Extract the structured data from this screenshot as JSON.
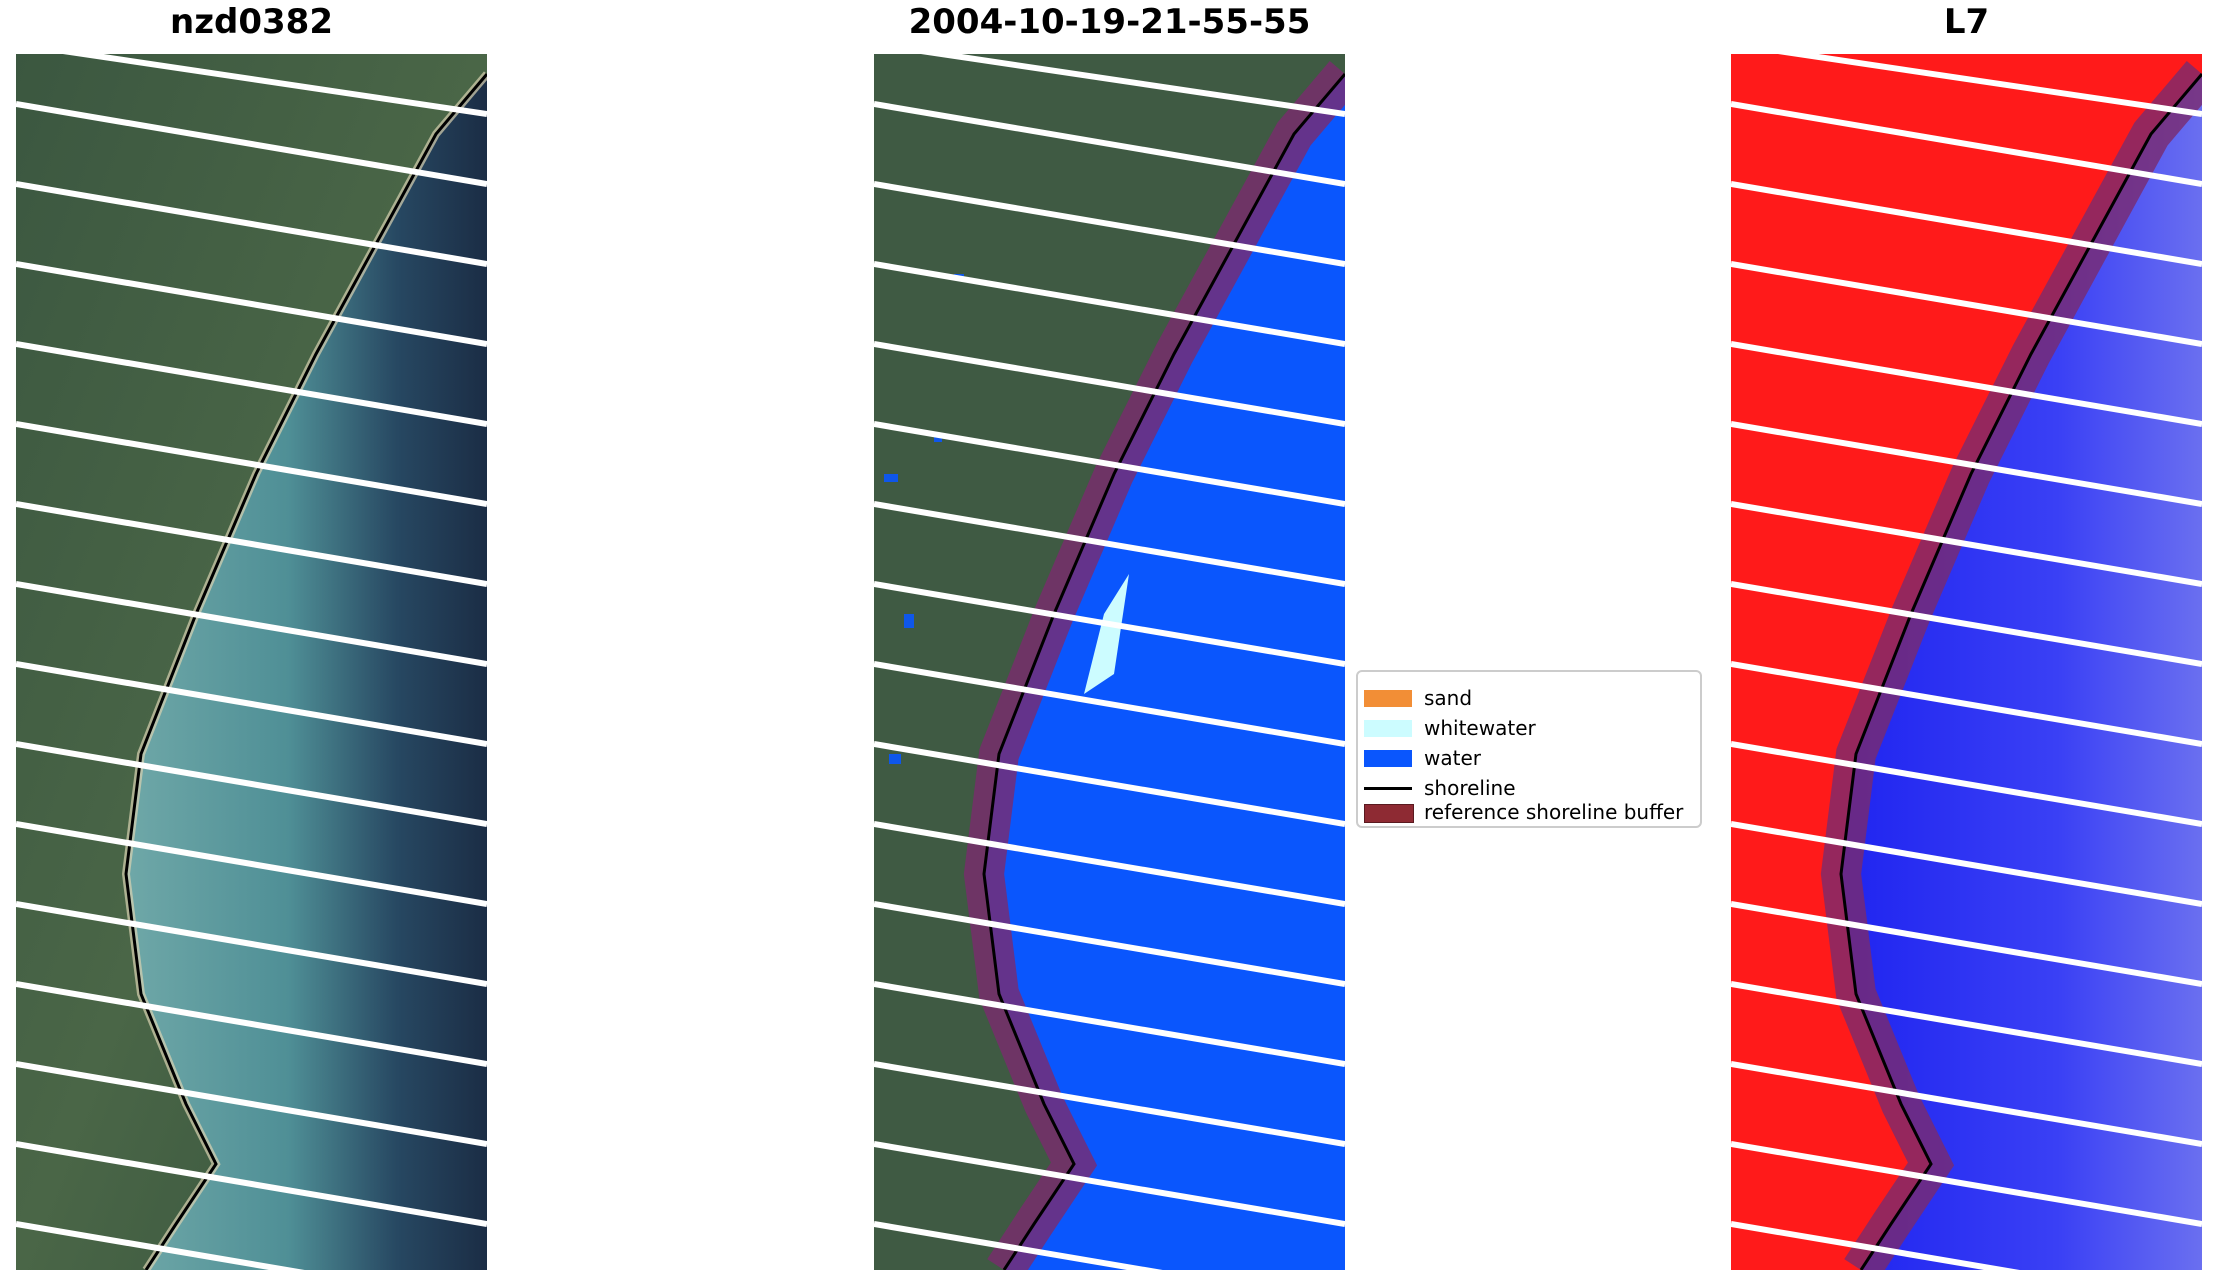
{
  "panels": [
    {
      "title": "nzd0382"
    },
    {
      "title": "2004-10-19-21-55-55"
    },
    {
      "title": "L7"
    }
  ],
  "legend": {
    "items": [
      {
        "label": "sand",
        "color": "#f28e36"
      },
      {
        "label": "whitewater",
        "color": "#ccfcff"
      },
      {
        "label": "water",
        "color": "#0a56fd"
      },
      {
        "label": "shoreline",
        "color": "#000000"
      },
      {
        "label": "reference shoreline buffer",
        "color": "#8e2a33"
      }
    ]
  },
  "colors": {
    "land": "#3f5a43",
    "shallow_water": "#5f9fa3",
    "deep_water": "#1b2d45",
    "water_class": "#0a56fd",
    "false_color_land": "#ff1a1a",
    "false_color_water": "#1f24f0",
    "buffer": "#7a2b6e",
    "stripes": "#ffffff"
  }
}
